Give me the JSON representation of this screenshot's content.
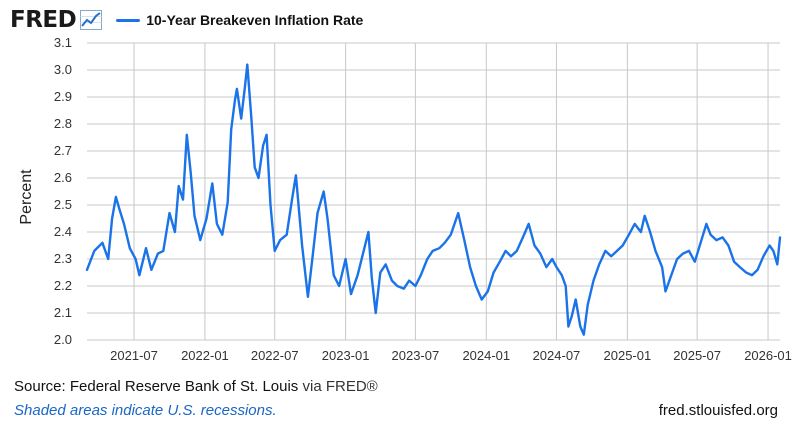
{
  "header": {
    "logo_text": "FRED",
    "logo_icon": "line-chart-icon",
    "series_label": "10-Year Breakeven Inflation Rate"
  },
  "footer": {
    "source": "Source: Federal Reserve Bank of St. Louis",
    "via": "via FRED®",
    "recession_note": "Shaded areas indicate U.S. recessions.",
    "url": "fred.stlouisfed.org"
  },
  "colors": {
    "series": "#1a73e8",
    "grid": "#c8c8c8",
    "recession_note": "#1a67c6"
  },
  "chart_data": {
    "type": "line",
    "title": "",
    "xlabel": "",
    "ylabel": "Percent",
    "ylim": [
      2.0,
      3.1
    ],
    "xlim": [
      "2021-03-01",
      "2026-02-01"
    ],
    "y_ticks": [
      "2.0",
      "2.1",
      "2.2",
      "2.3",
      "2.4",
      "2.5",
      "2.6",
      "2.7",
      "2.8",
      "2.9",
      "3.0",
      "3.1"
    ],
    "x_ticks": [
      "2021-07",
      "2022-01",
      "2022-07",
      "2023-01",
      "2023-07",
      "2024-01",
      "2024-07",
      "2025-01",
      "2025-07",
      "2026-01"
    ],
    "grid": true,
    "series": [
      {
        "name": "10-Year Breakeven Inflation Rate",
        "points": [
          [
            "2021-03-01",
            2.26
          ],
          [
            "2021-03-20",
            2.33
          ],
          [
            "2021-04-10",
            2.36
          ],
          [
            "2021-04-25",
            2.3
          ],
          [
            "2021-05-05",
            2.45
          ],
          [
            "2021-05-15",
            2.53
          ],
          [
            "2021-05-25",
            2.48
          ],
          [
            "2021-06-05",
            2.43
          ],
          [
            "2021-06-20",
            2.34
          ],
          [
            "2021-07-05",
            2.3
          ],
          [
            "2021-07-15",
            2.24
          ],
          [
            "2021-08-01",
            2.34
          ],
          [
            "2021-08-15",
            2.26
          ],
          [
            "2021-09-01",
            2.32
          ],
          [
            "2021-09-15",
            2.33
          ],
          [
            "2021-10-01",
            2.47
          ],
          [
            "2021-10-15",
            2.4
          ],
          [
            "2021-10-25",
            2.57
          ],
          [
            "2021-11-05",
            2.52
          ],
          [
            "2021-11-15",
            2.76
          ],
          [
            "2021-11-25",
            2.62
          ],
          [
            "2021-12-05",
            2.46
          ],
          [
            "2021-12-20",
            2.37
          ],
          [
            "2022-01-05",
            2.45
          ],
          [
            "2022-01-20",
            2.58
          ],
          [
            "2022-02-01",
            2.43
          ],
          [
            "2022-02-15",
            2.39
          ],
          [
            "2022-03-01",
            2.51
          ],
          [
            "2022-03-10",
            2.78
          ],
          [
            "2022-03-20",
            2.89
          ],
          [
            "2022-03-25",
            2.93
          ],
          [
            "2022-04-05",
            2.82
          ],
          [
            "2022-04-15",
            2.94
          ],
          [
            "2022-04-21",
            3.02
          ],
          [
            "2022-05-01",
            2.83
          ],
          [
            "2022-05-10",
            2.64
          ],
          [
            "2022-05-20",
            2.6
          ],
          [
            "2022-06-01",
            2.72
          ],
          [
            "2022-06-10",
            2.76
          ],
          [
            "2022-06-20",
            2.5
          ],
          [
            "2022-07-01",
            2.33
          ],
          [
            "2022-07-15",
            2.37
          ],
          [
            "2022-08-01",
            2.39
          ],
          [
            "2022-08-15",
            2.52
          ],
          [
            "2022-08-25",
            2.61
          ],
          [
            "2022-09-10",
            2.35
          ],
          [
            "2022-09-25",
            2.16
          ],
          [
            "2022-10-05",
            2.28
          ],
          [
            "2022-10-20",
            2.47
          ],
          [
            "2022-11-05",
            2.55
          ],
          [
            "2022-11-15",
            2.45
          ],
          [
            "2022-12-01",
            2.24
          ],
          [
            "2022-12-15",
            2.2
          ],
          [
            "2023-01-01",
            2.3
          ],
          [
            "2023-01-15",
            2.17
          ],
          [
            "2023-02-01",
            2.24
          ],
          [
            "2023-02-15",
            2.32
          ],
          [
            "2023-03-01",
            2.4
          ],
          [
            "2023-03-10",
            2.23
          ],
          [
            "2023-03-20",
            2.1
          ],
          [
            "2023-04-01",
            2.25
          ],
          [
            "2023-04-15",
            2.28
          ],
          [
            "2023-05-01",
            2.22
          ],
          [
            "2023-05-15",
            2.2
          ],
          [
            "2023-06-01",
            2.19
          ],
          [
            "2023-06-15",
            2.22
          ],
          [
            "2023-07-01",
            2.2
          ],
          [
            "2023-07-15",
            2.24
          ],
          [
            "2023-08-01",
            2.3
          ],
          [
            "2023-08-15",
            2.33
          ],
          [
            "2023-09-01",
            2.34
          ],
          [
            "2023-09-15",
            2.36
          ],
          [
            "2023-10-01",
            2.39
          ],
          [
            "2023-10-20",
            2.47
          ],
          [
            "2023-11-05",
            2.37
          ],
          [
            "2023-11-20",
            2.27
          ],
          [
            "2023-12-05",
            2.2
          ],
          [
            "2023-12-20",
            2.15
          ],
          [
            "2024-01-05",
            2.18
          ],
          [
            "2024-01-20",
            2.25
          ],
          [
            "2024-02-05",
            2.29
          ],
          [
            "2024-02-20",
            2.33
          ],
          [
            "2024-03-05",
            2.31
          ],
          [
            "2024-03-20",
            2.33
          ],
          [
            "2024-04-05",
            2.38
          ],
          [
            "2024-04-20",
            2.43
          ],
          [
            "2024-05-05",
            2.35
          ],
          [
            "2024-05-20",
            2.32
          ],
          [
            "2024-06-05",
            2.27
          ],
          [
            "2024-06-20",
            2.3
          ],
          [
            "2024-07-01",
            2.27
          ],
          [
            "2024-07-15",
            2.24
          ],
          [
            "2024-07-25",
            2.2
          ],
          [
            "2024-08-01",
            2.05
          ],
          [
            "2024-08-10",
            2.09
          ],
          [
            "2024-08-20",
            2.15
          ],
          [
            "2024-09-01",
            2.05
          ],
          [
            "2024-09-10",
            2.02
          ],
          [
            "2024-09-20",
            2.13
          ],
          [
            "2024-10-05",
            2.22
          ],
          [
            "2024-10-20",
            2.28
          ],
          [
            "2024-11-05",
            2.33
          ],
          [
            "2024-11-20",
            2.31
          ],
          [
            "2024-12-05",
            2.33
          ],
          [
            "2024-12-20",
            2.35
          ],
          [
            "2025-01-05",
            2.39
          ],
          [
            "2025-01-20",
            2.43
          ],
          [
            "2025-02-05",
            2.4
          ],
          [
            "2025-02-15",
            2.46
          ],
          [
            "2025-03-01",
            2.4
          ],
          [
            "2025-03-15",
            2.33
          ],
          [
            "2025-04-01",
            2.27
          ],
          [
            "2025-04-10",
            2.18
          ],
          [
            "2025-04-25",
            2.24
          ],
          [
            "2025-05-10",
            2.3
          ],
          [
            "2025-05-25",
            2.32
          ],
          [
            "2025-06-10",
            2.33
          ],
          [
            "2025-06-25",
            2.29
          ],
          [
            "2025-07-10",
            2.36
          ],
          [
            "2025-07-25",
            2.43
          ],
          [
            "2025-08-05",
            2.39
          ],
          [
            "2025-08-20",
            2.37
          ],
          [
            "2025-09-05",
            2.38
          ],
          [
            "2025-09-20",
            2.35
          ],
          [
            "2025-10-05",
            2.29
          ],
          [
            "2025-10-20",
            2.27
          ],
          [
            "2025-11-05",
            2.25
          ],
          [
            "2025-11-20",
            2.24
          ],
          [
            "2025-12-05",
            2.26
          ],
          [
            "2025-12-20",
            2.31
          ],
          [
            "2026-01-05",
            2.35
          ],
          [
            "2026-01-15",
            2.33
          ],
          [
            "2026-01-25",
            2.28
          ],
          [
            "2026-02-01",
            2.38
          ]
        ]
      }
    ]
  }
}
